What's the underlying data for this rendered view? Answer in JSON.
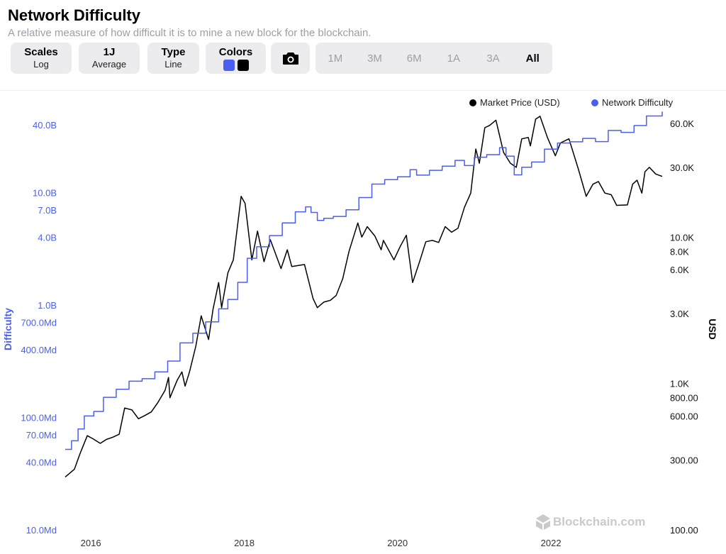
{
  "header": {
    "title": "Network Difficulty",
    "subtitle": "A relative measure of how difficult it is to mine a new block for the blockchain."
  },
  "toolbar": {
    "scales": {
      "label": "Scales",
      "value": "Log"
    },
    "average": {
      "label": "1J",
      "value": "Average"
    },
    "type": {
      "label": "Type",
      "value": "Line"
    },
    "colors": {
      "label": "Colors",
      "swatches": [
        "#4a5ff0",
        "#000000"
      ]
    },
    "camera_icon": "camera-icon",
    "ranges": [
      "1M",
      "3M",
      "6M",
      "1A",
      "3A",
      "All"
    ],
    "active_range": "All"
  },
  "watermark": "Blockchain.com",
  "chart_data": {
    "type": "line",
    "title": "Network Difficulty",
    "legend_position": "top-right",
    "left_axis_label": "Difficulty",
    "right_axis_label": "USD",
    "left_axis_ticks": [
      {
        "value": 40000000000,
        "label": "40.0B"
      },
      {
        "value": 10000000000,
        "label": "10.0B"
      },
      {
        "value": 7000000000,
        "label": "7.0B"
      },
      {
        "value": 4000000000,
        "label": "4.0B"
      },
      {
        "value": 1000000000,
        "label": "1.0B"
      },
      {
        "value": 700000000,
        "label": "700.0Md"
      },
      {
        "value": 400000000,
        "label": "400.0Md"
      },
      {
        "value": 100000000,
        "label": "100.0Md"
      },
      {
        "value": 70000000,
        "label": "70.0Md"
      },
      {
        "value": 40000000,
        "label": "40.0Md"
      },
      {
        "value": 10000000,
        "label": "10.0Md"
      }
    ],
    "right_axis_ticks": [
      {
        "value": 60000,
        "label": "60.0K"
      },
      {
        "value": 30000,
        "label": "30.0K"
      },
      {
        "value": 10000,
        "label": "10.0K"
      },
      {
        "value": 8000,
        "label": "8.0K"
      },
      {
        "value": 6000,
        "label": "6.0K"
      },
      {
        "value": 3000,
        "label": "3.0K"
      },
      {
        "value": 1000,
        "label": "1.0K"
      },
      {
        "value": 800,
        "label": "800.00"
      },
      {
        "value": 600,
        "label": "600.00"
      },
      {
        "value": 300,
        "label": "300.00"
      },
      {
        "value": 100,
        "label": "100.00"
      }
    ],
    "x_ticks": [
      "2016",
      "2018",
      "2020",
      "2022"
    ],
    "left_scale": "log",
    "right_scale": "log",
    "left_range": [
      10000000,
      60000000000
    ],
    "right_range": [
      100,
      80000
    ],
    "x_range": [
      "2015-09-01",
      "2023-06-15"
    ],
    "series": [
      {
        "name": "Market Price (USD)",
        "axis": "right",
        "color": "#000000",
        "points": [
          [
            "2015-09-01",
            230
          ],
          [
            "2015-10-15",
            260
          ],
          [
            "2015-11-10",
            330
          ],
          [
            "2015-12-15",
            440
          ],
          [
            "2016-01-10",
            420
          ],
          [
            "2016-02-15",
            390
          ],
          [
            "2016-03-15",
            415
          ],
          [
            "2016-04-15",
            430
          ],
          [
            "2016-05-15",
            450
          ],
          [
            "2016-06-10",
            680
          ],
          [
            "2016-07-15",
            660
          ],
          [
            "2016-08-15",
            575
          ],
          [
            "2016-09-15",
            605
          ],
          [
            "2016-10-15",
            640
          ],
          [
            "2016-11-15",
            740
          ],
          [
            "2016-12-20",
            900
          ],
          [
            "2017-01-05",
            1100
          ],
          [
            "2017-01-12",
            800
          ],
          [
            "2017-02-15",
            1050
          ],
          [
            "2017-03-10",
            1200
          ],
          [
            "2017-03-25",
            960
          ],
          [
            "2017-04-15",
            1200
          ],
          [
            "2017-05-15",
            1800
          ],
          [
            "2017-06-10",
            2900
          ],
          [
            "2017-07-15",
            2000
          ],
          [
            "2017-08-05",
            3200
          ],
          [
            "2017-09-01",
            4900
          ],
          [
            "2017-09-15",
            3300
          ],
          [
            "2017-10-15",
            5700
          ],
          [
            "2017-11-10",
            7000
          ],
          [
            "2017-12-17",
            19000
          ],
          [
            "2018-01-05",
            17000
          ],
          [
            "2018-02-06",
            7000
          ],
          [
            "2018-03-05",
            11000
          ],
          [
            "2018-04-05",
            6800
          ],
          [
            "2018-05-05",
            9600
          ],
          [
            "2018-06-25",
            6100
          ],
          [
            "2018-07-25",
            8200
          ],
          [
            "2018-08-15",
            6300
          ],
          [
            "2018-10-15",
            6500
          ],
          [
            "2018-11-25",
            3800
          ],
          [
            "2018-12-15",
            3300
          ],
          [
            "2019-01-15",
            3600
          ],
          [
            "2019-02-15",
            3700
          ],
          [
            "2019-03-15",
            4000
          ],
          [
            "2019-04-15",
            5200
          ],
          [
            "2019-05-15",
            8000
          ],
          [
            "2019-06-26",
            12500
          ],
          [
            "2019-07-15",
            10000
          ],
          [
            "2019-08-10",
            11800
          ],
          [
            "2019-09-15",
            10200
          ],
          [
            "2019-10-15",
            8200
          ],
          [
            "2019-10-26",
            9500
          ],
          [
            "2019-12-15",
            7000
          ],
          [
            "2020-01-15",
            8700
          ],
          [
            "2020-02-12",
            10300
          ],
          [
            "2020-03-13",
            4900
          ],
          [
            "2020-04-15",
            6800
          ],
          [
            "2020-05-15",
            9300
          ],
          [
            "2020-06-15",
            9500
          ],
          [
            "2020-07-15",
            9200
          ],
          [
            "2020-08-15",
            11800
          ],
          [
            "2020-09-15",
            10800
          ],
          [
            "2020-10-15",
            11500
          ],
          [
            "2020-11-15",
            16000
          ],
          [
            "2020-12-15",
            20000
          ],
          [
            "2021-01-08",
            40000
          ],
          [
            "2021-01-25",
            32000
          ],
          [
            "2021-02-20",
            56000
          ],
          [
            "2021-03-15",
            58000
          ],
          [
            "2021-04-14",
            63000
          ],
          [
            "2021-05-20",
            38000
          ],
          [
            "2021-06-22",
            32000
          ],
          [
            "2021-07-20",
            30000
          ],
          [
            "2021-08-15",
            47000
          ],
          [
            "2021-09-15",
            48000
          ],
          [
            "2021-09-25",
            42000
          ],
          [
            "2021-10-20",
            64000
          ],
          [
            "2021-11-10",
            67000
          ],
          [
            "2021-12-15",
            48000
          ],
          [
            "2022-01-22",
            36000
          ],
          [
            "2022-02-15",
            44000
          ],
          [
            "2022-03-28",
            47000
          ],
          [
            "2022-05-12",
            29000
          ],
          [
            "2022-06-18",
            19000
          ],
          [
            "2022-07-20",
            23000
          ],
          [
            "2022-08-15",
            24000
          ],
          [
            "2022-09-15",
            20000
          ],
          [
            "2022-10-15",
            19500
          ],
          [
            "2022-11-10",
            16500
          ],
          [
            "2022-12-31",
            16600
          ],
          [
            "2023-01-25",
            23000
          ],
          [
            "2023-02-15",
            24500
          ],
          [
            "2023-03-10",
            20000
          ],
          [
            "2023-03-25",
            28000
          ],
          [
            "2023-04-15",
            30000
          ],
          [
            "2023-05-15",
            27000
          ],
          [
            "2023-06-15",
            26000
          ]
        ]
      },
      {
        "name": "Network Difficulty",
        "axis": "left",
        "color": "#4a5ff0",
        "points": [
          [
            "2015-09-01",
            52000000
          ],
          [
            "2015-10-01",
            62000000
          ],
          [
            "2015-11-01",
            79000000
          ],
          [
            "2015-12-01",
            103000000
          ],
          [
            "2016-01-15",
            113000000
          ],
          [
            "2016-03-01",
            151000000
          ],
          [
            "2016-05-01",
            178000000
          ],
          [
            "2016-07-01",
            210000000
          ],
          [
            "2016-09-01",
            221000000
          ],
          [
            "2016-11-01",
            254000000
          ],
          [
            "2017-01-01",
            317000000
          ],
          [
            "2017-03-01",
            460000000
          ],
          [
            "2017-05-01",
            560000000
          ],
          [
            "2017-07-01",
            708000000
          ],
          [
            "2017-09-01",
            923000000
          ],
          [
            "2017-10-15",
            1120000000
          ],
          [
            "2017-12-01",
            1590000000
          ],
          [
            "2018-01-15",
            2600000000
          ],
          [
            "2018-03-01",
            3290000000
          ],
          [
            "2018-05-01",
            4140000000
          ],
          [
            "2018-07-01",
            5360000000
          ],
          [
            "2018-09-01",
            6730000000
          ],
          [
            "2018-10-20",
            7450000000
          ],
          [
            "2018-11-15",
            6650000000
          ],
          [
            "2018-12-15",
            5640000000
          ],
          [
            "2019-01-15",
            5900000000
          ],
          [
            "2019-03-01",
            6130000000
          ],
          [
            "2019-05-01",
            7010000000
          ],
          [
            "2019-07-01",
            9010000000
          ],
          [
            "2019-09-01",
            11890000000
          ],
          [
            "2019-11-01",
            13000000000
          ],
          [
            "2020-01-01",
            13800000000
          ],
          [
            "2020-03-01",
            15960000000
          ],
          [
            "2020-04-01",
            14270000000
          ],
          [
            "2020-06-01",
            15750000000
          ],
          [
            "2020-08-01",
            17150000000
          ],
          [
            "2020-10-01",
            19300000000
          ],
          [
            "2020-11-15",
            17350000000
          ],
          [
            "2021-01-01",
            20600000000
          ],
          [
            "2021-03-01",
            21720000000
          ],
          [
            "2021-05-01",
            25050000000
          ],
          [
            "2021-06-01",
            21050000000
          ],
          [
            "2021-07-10",
            14360000000
          ],
          [
            "2021-08-15",
            16790000000
          ],
          [
            "2021-10-01",
            18660000000
          ],
          [
            "2021-12-01",
            24270000000
          ],
          [
            "2022-02-01",
            27550000000
          ],
          [
            "2022-04-01",
            28230000000
          ],
          [
            "2022-06-01",
            30280000000
          ],
          [
            "2022-08-01",
            28350000000
          ],
          [
            "2022-10-01",
            35610000000
          ],
          [
            "2022-12-01",
            34240000000
          ],
          [
            "2023-02-01",
            39350000000
          ],
          [
            "2023-04-01",
            47890000000
          ],
          [
            "2023-06-15",
            52390000000
          ]
        ]
      }
    ]
  }
}
